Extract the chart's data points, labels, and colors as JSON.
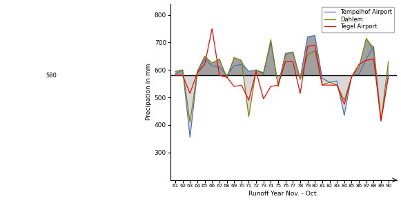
{
  "years": [
    61,
    62,
    63,
    64,
    65,
    66,
    67,
    68,
    69,
    70,
    71,
    72,
    73,
    74,
    75,
    76,
    77,
    78,
    79,
    80,
    81,
    82,
    83,
    84,
    85,
    86,
    87,
    88,
    89,
    90
  ],
  "tempelhof": [
    585,
    600,
    355,
    590,
    640,
    615,
    610,
    580,
    615,
    620,
    595,
    600,
    590,
    700,
    545,
    660,
    665,
    570,
    720,
    725,
    570,
    555,
    560,
    435,
    580,
    585,
    640,
    685,
    420,
    580
  ],
  "dahlem": [
    595,
    600,
    410,
    595,
    650,
    625,
    640,
    570,
    645,
    635,
    430,
    600,
    585,
    710,
    540,
    655,
    665,
    565,
    655,
    670,
    545,
    555,
    545,
    490,
    575,
    610,
    715,
    670,
    415,
    630
  ],
  "tegel": [
    580,
    580,
    515,
    590,
    620,
    750,
    580,
    575,
    540,
    545,
    490,
    595,
    495,
    540,
    545,
    630,
    630,
    515,
    685,
    690,
    545,
    545,
    545,
    475,
    575,
    620,
    635,
    640,
    415,
    575
  ],
  "baseline": 580,
  "ylim": [
    200,
    840
  ],
  "yticks": [
    300,
    400,
    500,
    600,
    700,
    800
  ],
  "baseline_label": "580",
  "ylabel": "Precipation in mm",
  "xlabel": "Runoff Year Nov. - Oct.",
  "color_tempelhof": "#4472C4",
  "color_dahlem": "#808000",
  "color_tegel": "#FF0000",
  "color_fill_above": "#808080",
  "color_fill_below": "#D3D3D3",
  "legend_labels": [
    "Tempelhof Airport",
    "Dahlem",
    "Tegel Airport"
  ],
  "figsize": [
    5.81,
    2.91
  ],
  "dpi": 100
}
